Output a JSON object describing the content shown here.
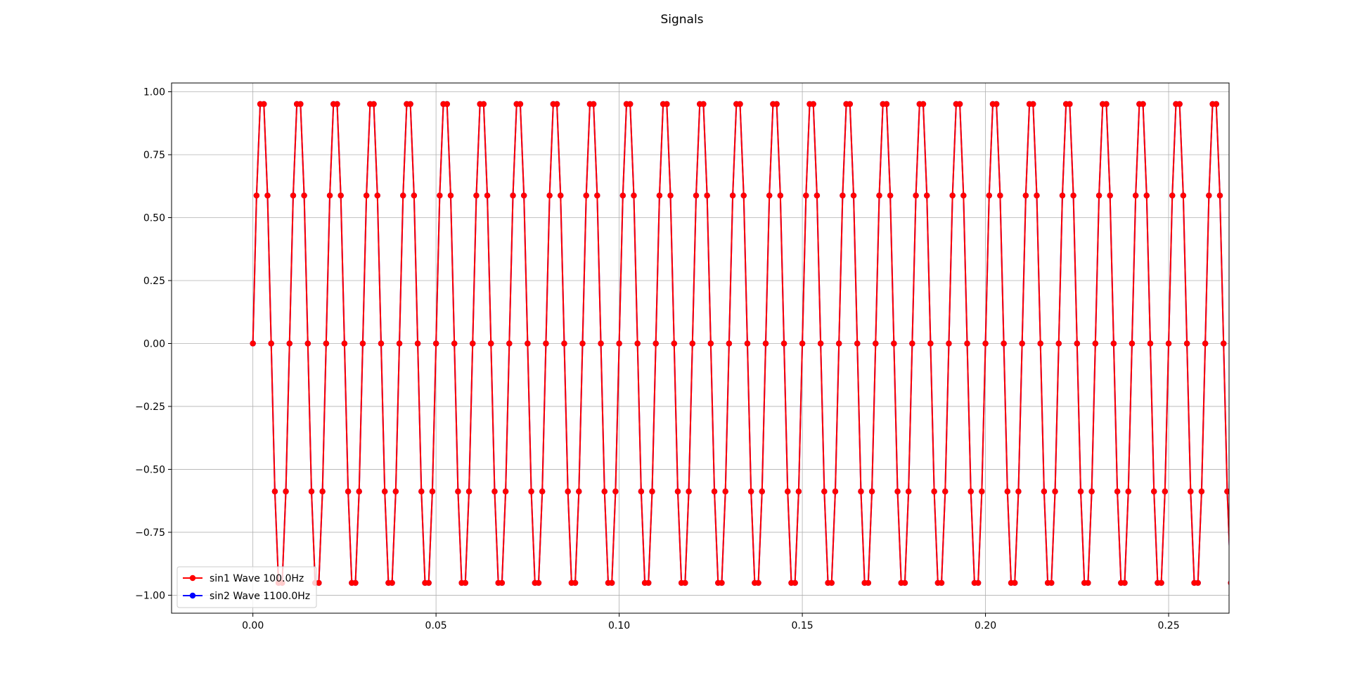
{
  "chart_data": {
    "type": "line",
    "title": "Signals",
    "xlabel": "",
    "ylabel": "",
    "xlim": [
      -0.0222,
      0.2665
    ],
    "ylim": [
      -1.0714,
      1.0349
    ],
    "x_ticks": [
      "0.00",
      "0.05",
      "0.10",
      "0.15",
      "0.20",
      "0.25"
    ],
    "x_tick_values": [
      0,
      0.05,
      0.1,
      0.15,
      0.2,
      0.25
    ],
    "y_ticks": [
      "1.00",
      "0.75",
      "0.50",
      "0.25",
      "0.00",
      "−0.25",
      "−0.50",
      "−0.75",
      "−1.00"
    ],
    "y_tick_values": [
      1,
      0.75,
      0.5,
      0.25,
      0,
      -0.25,
      -0.5,
      -0.75,
      -1
    ],
    "grid": true,
    "legend_position": "lower-left",
    "sample_rate_hz": 1000,
    "series": [
      {
        "name": "sin1 Wave 100.0Hz",
        "color": "#ff0000",
        "frequency_hz": 100.0,
        "amplitude": 1.0,
        "marker": "circle"
      },
      {
        "name": "sin2 Wave 1100.0Hz",
        "color": "#0000ff",
        "frequency_hz": 1100.0,
        "amplitude": 1.0,
        "marker": "circle"
      }
    ]
  }
}
